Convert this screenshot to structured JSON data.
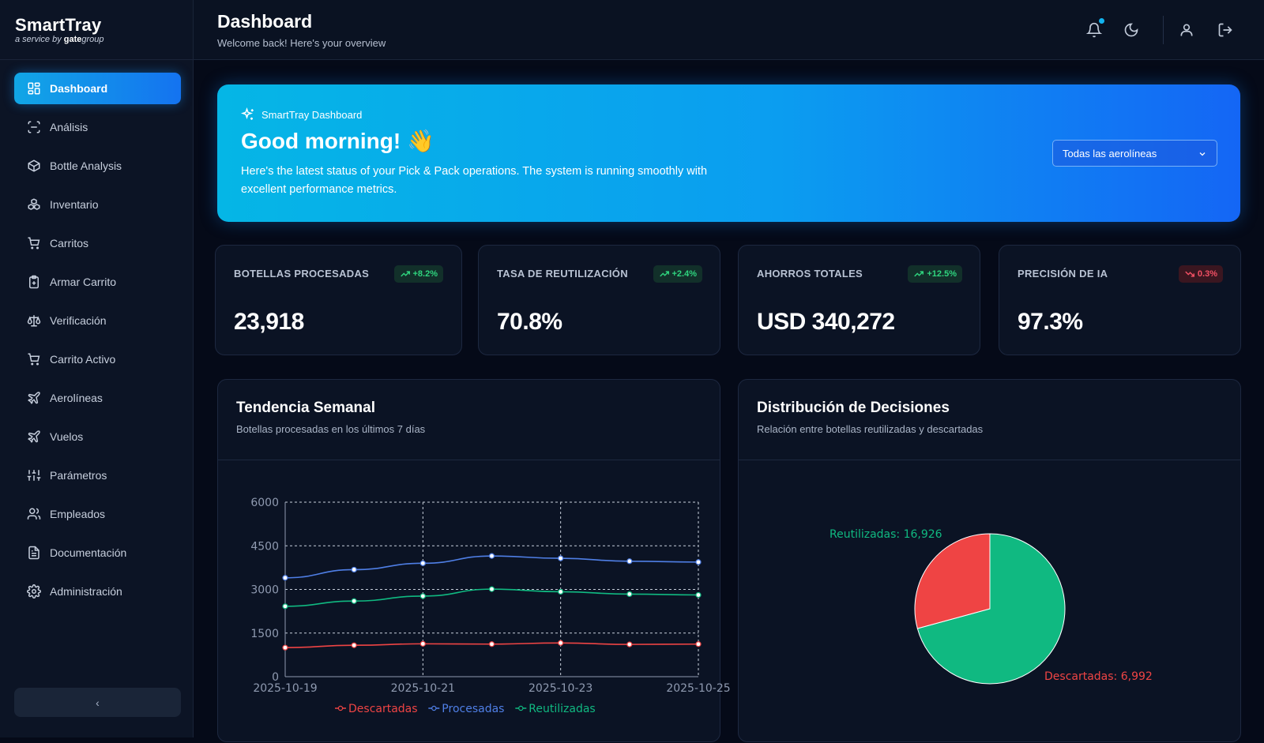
{
  "brand": {
    "name": "SmartTray",
    "sub_prefix": "a service by ",
    "sub_brand": "gate",
    "sub_suffix": "group"
  },
  "sidebar": {
    "items": [
      {
        "label": "Dashboard",
        "icon": "dashboard-icon",
        "active": true
      },
      {
        "label": "Análisis",
        "icon": "scan-icon"
      },
      {
        "label": "Bottle Analysis",
        "icon": "package-icon"
      },
      {
        "label": "Inventario",
        "icon": "boxes-icon"
      },
      {
        "label": "Carritos",
        "icon": "cart-icon"
      },
      {
        "label": "Armar Carrito",
        "icon": "clipboard-plus-icon"
      },
      {
        "label": "Verificación",
        "icon": "scale-icon"
      },
      {
        "label": "Carrito Activo",
        "icon": "cart-icon"
      },
      {
        "label": "Aerolíneas",
        "icon": "plane-icon"
      },
      {
        "label": "Vuelos",
        "icon": "plane-icon"
      },
      {
        "label": "Parámetros",
        "icon": "sliders-icon"
      },
      {
        "label": "Empleados",
        "icon": "users-icon"
      },
      {
        "label": "Documentación",
        "icon": "file-text-icon"
      },
      {
        "label": "Administración",
        "icon": "gear-icon"
      }
    ],
    "collapse_label": "‹"
  },
  "header": {
    "title": "Dashboard",
    "subtitle": "Welcome back! Here's your overview"
  },
  "hero": {
    "tag": "SmartTray Dashboard",
    "title": "Good morning! 👋",
    "text": "Here's the latest status of your Pick & Pack operations. The system is running smoothly with excellent performance metrics.",
    "airline_select": "Todas las aerolíneas"
  },
  "stats": [
    {
      "label": "BOTELLAS PROCESADAS",
      "value": "23,918",
      "badge": "+8.2%",
      "trend": "up"
    },
    {
      "label": "TASA DE REUTILIZACIÓN",
      "value": "70.8%",
      "badge": "+2.4%",
      "trend": "up"
    },
    {
      "label": "AHORROS TOTALES",
      "value": "USD 340,272",
      "badge": "+12.5%",
      "trend": "up"
    },
    {
      "label": "PRECISIÓN DE IA",
      "value": "97.3%",
      "badge": "0.3%",
      "trend": "down"
    }
  ],
  "weekly": {
    "title": "Tendencia Semanal",
    "subtitle": "Botellas procesadas en los últimos 7 días"
  },
  "decisions": {
    "title": "Distribución de Decisiones",
    "subtitle": "Relación entre botellas reutilizadas y descartadas",
    "reused_label": "Reutilizadas: 16,926",
    "discarded_label": "Descartadas: 6,992"
  },
  "colors": {
    "accent": "#1473f0",
    "reused": "#10b981",
    "discarded": "#ef4444",
    "processed": "#4f7fe6"
  },
  "chart_data": [
    {
      "type": "line",
      "x": [
        "2025-10-19",
        "2025-10-20",
        "2025-10-21",
        "2025-10-22",
        "2025-10-23",
        "2025-10-24",
        "2025-10-25"
      ],
      "x_tick_labels": [
        "2025-10-19",
        "2025-10-21",
        "2025-10-23",
        "2025-10-25"
      ],
      "ylim": [
        0,
        6000
      ],
      "y_ticks": [
        0,
        1500,
        3000,
        4500,
        6000
      ],
      "grid": true,
      "legend": "bottom",
      "series": [
        {
          "name": "Descartadas",
          "color": "#ef4444",
          "values": [
            1000,
            1080,
            1130,
            1120,
            1160,
            1110,
            1120
          ]
        },
        {
          "name": "Procesadas",
          "color": "#4f7fe6",
          "values": [
            3400,
            3680,
            3900,
            4150,
            4070,
            3970,
            3940
          ]
        },
        {
          "name": "Reutilizadas",
          "color": "#10b981",
          "values": [
            2420,
            2600,
            2770,
            3010,
            2920,
            2840,
            2810
          ]
        }
      ]
    },
    {
      "type": "pie",
      "slices": [
        {
          "name": "Reutilizadas",
          "value": 16926,
          "color": "#10b981"
        },
        {
          "name": "Descartadas",
          "value": 6992,
          "color": "#ef4444"
        }
      ]
    }
  ]
}
